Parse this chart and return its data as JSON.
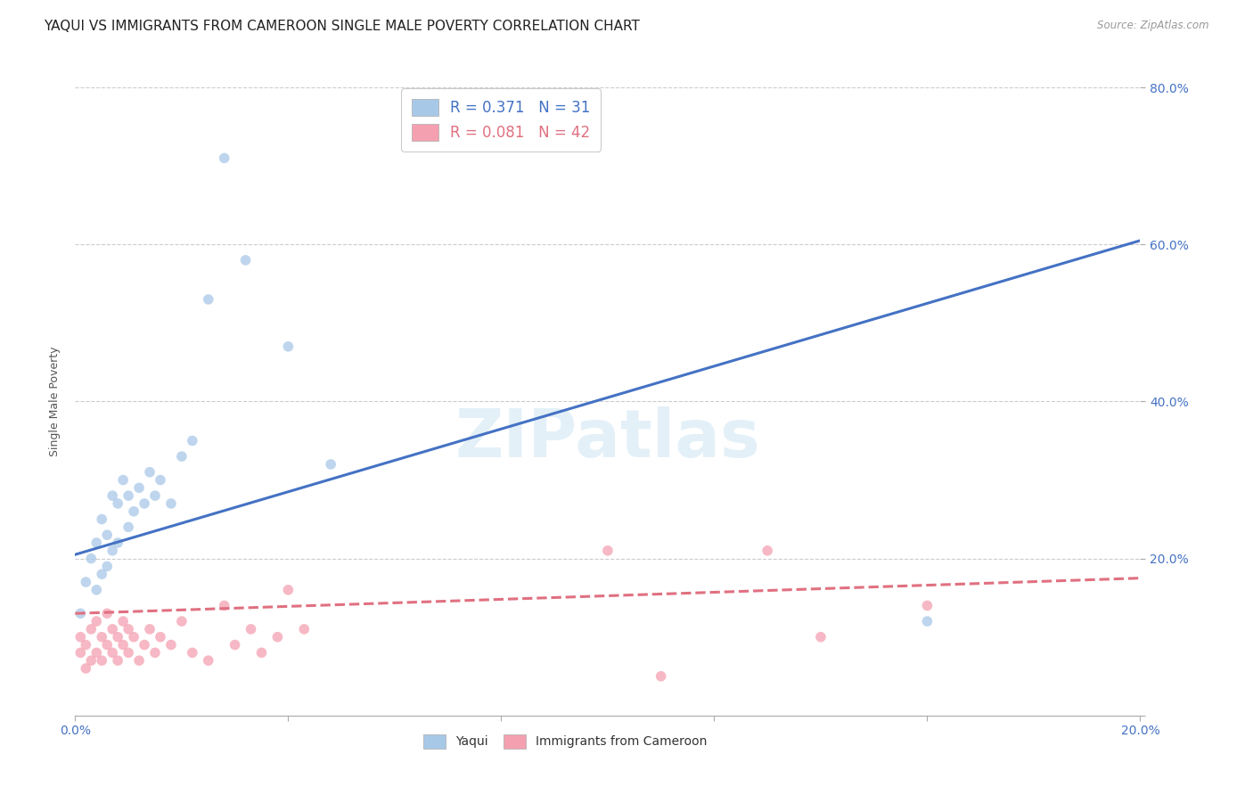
{
  "title": "YAQUI VS IMMIGRANTS FROM CAMEROON SINGLE MALE POVERTY CORRELATION CHART",
  "source": "Source: ZipAtlas.com",
  "ylabel_label": "Single Male Poverty",
  "xlim": [
    0.0,
    0.2
  ],
  "ylim": [
    0.0,
    0.8
  ],
  "xticks": [
    0.0,
    0.04,
    0.08,
    0.12,
    0.16,
    0.2
  ],
  "yticks": [
    0.0,
    0.2,
    0.4,
    0.6,
    0.8
  ],
  "ytick_labels": [
    "",
    "20.0%",
    "40.0%",
    "60.0%",
    "80.0%"
  ],
  "xtick_labels": [
    "0.0%",
    "",
    "",
    "",
    "",
    "20.0%"
  ],
  "background_color": "#ffffff",
  "watermark": "ZIPatlas",
  "series": [
    {
      "name": "Yaqui",
      "color": "#a8c8e8",
      "R": 0.371,
      "N": 31,
      "line_color": "#4472c4",
      "line_style": "solid",
      "line_x0": 0.0,
      "line_y0": 0.205,
      "line_x1": 0.2,
      "line_y1": 0.605,
      "x": [
        0.001,
        0.002,
        0.003,
        0.004,
        0.004,
        0.005,
        0.005,
        0.006,
        0.006,
        0.007,
        0.007,
        0.008,
        0.008,
        0.009,
        0.01,
        0.01,
        0.011,
        0.012,
        0.013,
        0.014,
        0.015,
        0.016,
        0.018,
        0.02,
        0.022,
        0.025,
        0.028,
        0.032,
        0.04,
        0.048,
        0.16
      ],
      "y": [
        0.13,
        0.17,
        0.2,
        0.16,
        0.22,
        0.18,
        0.25,
        0.19,
        0.23,
        0.21,
        0.28,
        0.22,
        0.27,
        0.3,
        0.24,
        0.28,
        0.26,
        0.29,
        0.27,
        0.31,
        0.28,
        0.3,
        0.27,
        0.33,
        0.35,
        0.53,
        0.71,
        0.58,
        0.47,
        0.32,
        0.12
      ]
    },
    {
      "name": "Immigrants from Cameroon",
      "color": "#f4a0b0",
      "R": 0.081,
      "N": 42,
      "line_color": "#e07080",
      "line_style": "dashed",
      "line_x0": 0.0,
      "line_y0": 0.13,
      "line_x1": 0.2,
      "line_y1": 0.175,
      "x": [
        0.001,
        0.001,
        0.002,
        0.002,
        0.003,
        0.003,
        0.004,
        0.004,
        0.005,
        0.005,
        0.006,
        0.006,
        0.007,
        0.007,
        0.008,
        0.008,
        0.009,
        0.009,
        0.01,
        0.01,
        0.011,
        0.012,
        0.013,
        0.014,
        0.015,
        0.016,
        0.018,
        0.02,
        0.022,
        0.025,
        0.028,
        0.03,
        0.033,
        0.035,
        0.038,
        0.04,
        0.043,
        0.1,
        0.11,
        0.13,
        0.14,
        0.16
      ],
      "y": [
        0.08,
        0.1,
        0.06,
        0.09,
        0.07,
        0.11,
        0.08,
        0.12,
        0.07,
        0.1,
        0.09,
        0.13,
        0.08,
        0.11,
        0.07,
        0.1,
        0.09,
        0.12,
        0.08,
        0.11,
        0.1,
        0.07,
        0.09,
        0.11,
        0.08,
        0.1,
        0.09,
        0.12,
        0.08,
        0.07,
        0.14,
        0.09,
        0.11,
        0.08,
        0.1,
        0.16,
        0.11,
        0.21,
        0.05,
        0.21,
        0.1,
        0.14
      ]
    }
  ],
  "title_fontsize": 11,
  "axis_label_fontsize": 9,
  "tick_fontsize": 10,
  "marker_size": 70,
  "marker_alpha": 0.75
}
